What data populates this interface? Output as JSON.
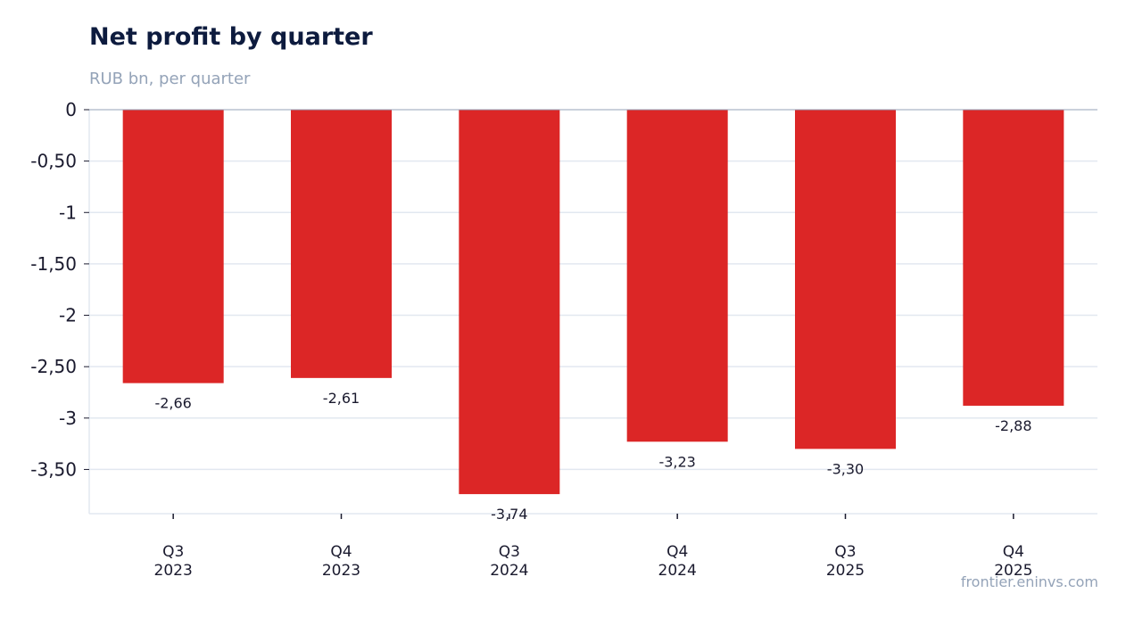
{
  "chart_data": {
    "type": "bar",
    "title": "Net profit by quarter",
    "subtitle": "RUB bn, per quarter",
    "categories": [
      [
        "Q3",
        "2023"
      ],
      [
        "Q4",
        "2023"
      ],
      [
        "Q3",
        "2024"
      ],
      [
        "Q4",
        "2024"
      ],
      [
        "Q3",
        "2025"
      ],
      [
        "Q4",
        "2025"
      ]
    ],
    "series": [
      {
        "values": [
          -2.66,
          -2.61,
          -3.74,
          -3.23,
          -3.3,
          -2.88
        ],
        "color": "#dc2626"
      }
    ],
    "data_labels": [
      "-2,66",
      "-2,61",
      "-3,74",
      "-3,23",
      "-3,30",
      "-2,88"
    ],
    "y_ticks": [
      0,
      -0.5,
      -1,
      -1.5,
      -2,
      -2.5,
      -3,
      -3.5
    ],
    "y_tick_labels": [
      "0",
      "-0,50",
      "-1",
      "-1,50",
      "-2",
      "-2,50",
      "-3",
      "-3,50"
    ],
    "ylim": [
      -3.93,
      0
    ],
    "grid": true,
    "xlabel": "",
    "ylabel": ""
  },
  "source": "frontier.eninvs.com"
}
